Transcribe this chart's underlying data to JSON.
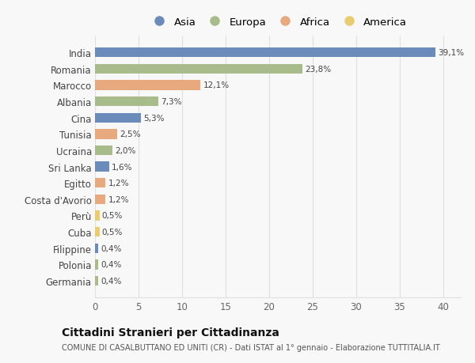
{
  "countries": [
    "India",
    "Romania",
    "Marocco",
    "Albania",
    "Cina",
    "Tunisia",
    "Ucraina",
    "Sri Lanka",
    "Egitto",
    "Costa d'Avorio",
    "Perù",
    "Cuba",
    "Filippine",
    "Polonia",
    "Germania"
  ],
  "values": [
    39.1,
    23.8,
    12.1,
    7.3,
    5.3,
    2.5,
    2.0,
    1.6,
    1.2,
    1.2,
    0.5,
    0.5,
    0.4,
    0.4,
    0.4
  ],
  "labels": [
    "39,1%",
    "23,8%",
    "12,1%",
    "7,3%",
    "5,3%",
    "2,5%",
    "2,0%",
    "1,6%",
    "1,2%",
    "1,2%",
    "0,5%",
    "0,5%",
    "0,4%",
    "0,4%",
    "0,4%"
  ],
  "continents": [
    "Asia",
    "Europa",
    "Africa",
    "Europa",
    "Asia",
    "Africa",
    "Europa",
    "Asia",
    "Africa",
    "Africa",
    "America",
    "America",
    "Asia",
    "Europa",
    "Europa"
  ],
  "colors": {
    "Asia": "#6b8cba",
    "Europa": "#a8bb8a",
    "Africa": "#e8a97e",
    "America": "#e8cc6e"
  },
  "legend_order": [
    "Asia",
    "Europa",
    "Africa",
    "America"
  ],
  "title": "Cittadini Stranieri per Cittadinanza",
  "subtitle": "COMUNE DI CASALBUTTANO ED UNITI (CR) - Dati ISTAT al 1° gennaio - Elaborazione TUTTITALIA.IT",
  "xlim": [
    0,
    42
  ],
  "xticks": [
    0,
    5,
    10,
    15,
    20,
    25,
    30,
    35,
    40
  ],
  "bg_color": "#f8f8f8",
  "grid_color": "#e0e0e0"
}
